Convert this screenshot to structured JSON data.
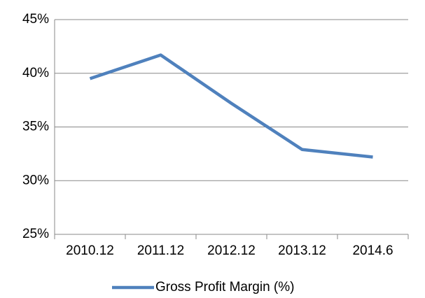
{
  "chart_data": {
    "type": "line",
    "categories": [
      "2010.12",
      "2011.12",
      "2012.12",
      "2013.12",
      "2014.6"
    ],
    "series": [
      {
        "name": "Gross Profit Margin (%)",
        "color": "#4f81bd",
        "values": [
          39.5,
          41.7,
          37.2,
          32.9,
          32.2
        ]
      }
    ],
    "ylim": [
      25,
      45
    ],
    "yticks": [
      {
        "value": 25,
        "label": "25%"
      },
      {
        "value": 30,
        "label": "30%"
      },
      {
        "value": 35,
        "label": "35%"
      },
      {
        "value": 40,
        "label": "40%"
      },
      {
        "value": 45,
        "label": "45%"
      }
    ],
    "grid": true,
    "legend": "bottom"
  }
}
